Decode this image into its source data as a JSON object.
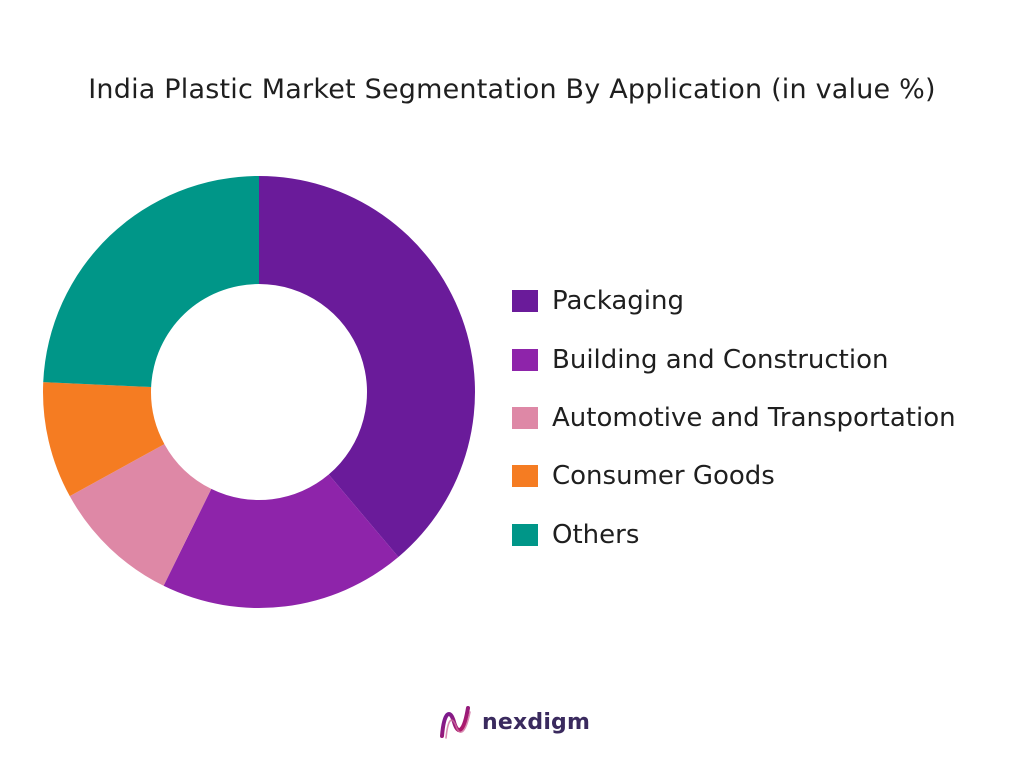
{
  "chart_data": {
    "type": "pie",
    "title": "India Plastic Market Segmentation By Application (in value %)",
    "donut": true,
    "legend_position": "right",
    "categories": [
      "Packaging",
      "Building and Construction",
      "Automotive and Transportation",
      "Consumer Goods",
      "Others"
    ],
    "values": [
      40,
      19,
      10,
      9,
      25
    ],
    "colors": [
      "#6a1b9a",
      "#8e24aa",
      "#de88a6",
      "#f57c22",
      "#009688"
    ],
    "start_angle_deg": 0,
    "direction": "clockwise"
  },
  "logo": {
    "text": "nexdigm",
    "icon": "nexdigm-logo-icon"
  }
}
